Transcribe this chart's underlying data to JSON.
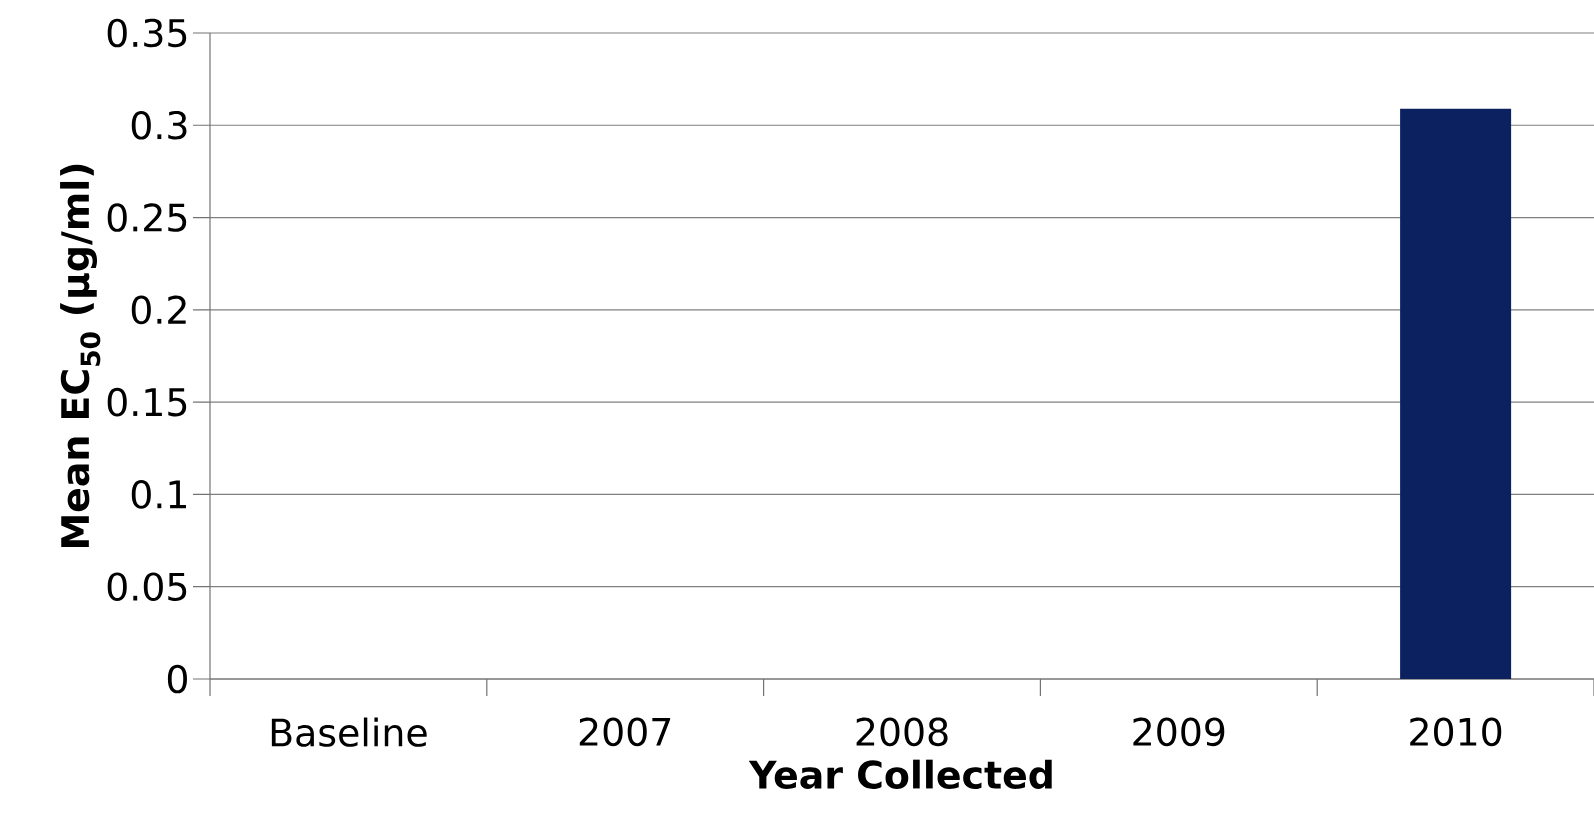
{
  "chart_data": {
    "type": "bar",
    "xlabel": "Year Collected",
    "ylabel": "Mean EC$_{50}$ (µg/ml)",
    "categories": [
      "Baseline",
      "2007",
      "2008",
      "2009",
      "2010"
    ],
    "values": [
      null,
      null,
      null,
      null,
      0.309
    ],
    "color": "#0b2160",
    "ylim": [
      0,
      0.35
    ],
    "yticks": [
      0,
      0.05,
      0.1,
      0.15,
      0.2,
      0.25,
      0.3,
      0.35
    ],
    "grid": "y"
  }
}
